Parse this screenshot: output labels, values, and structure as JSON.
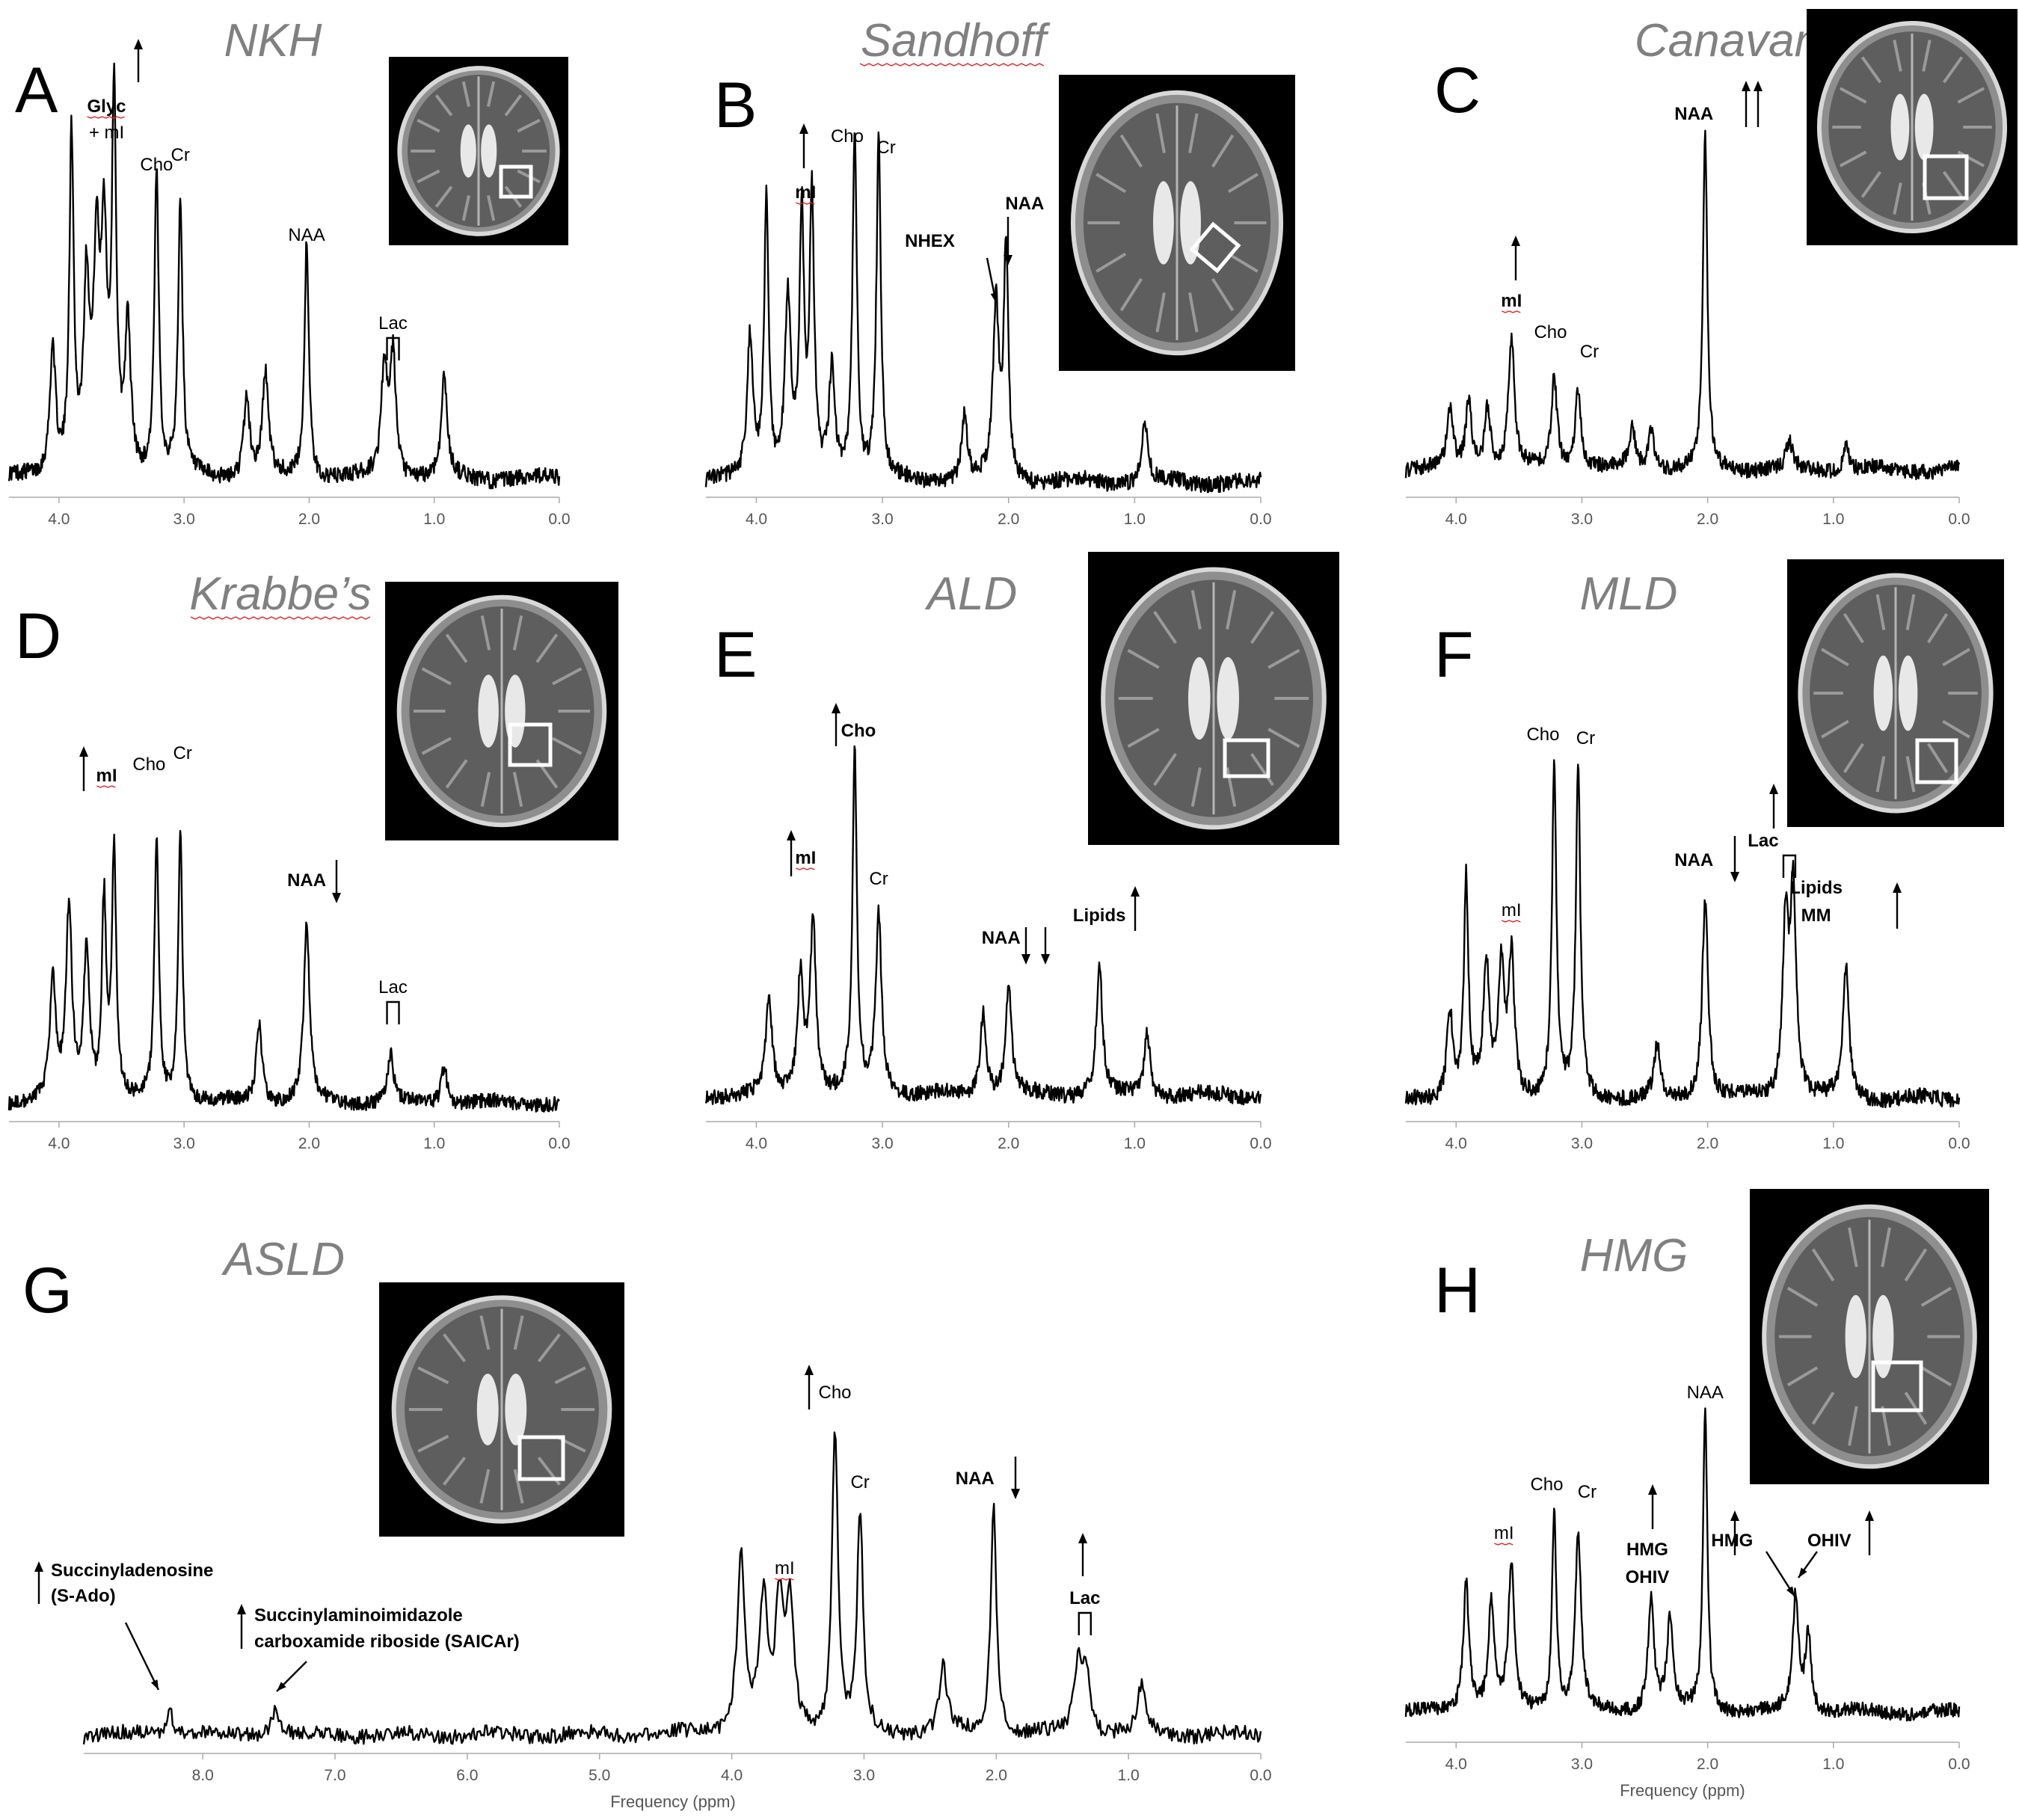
{
  "axis": {
    "xlabel": "Frequency (ppm)"
  },
  "colors": {
    "trace": "#000000",
    "title": "#808080",
    "axis": "#aaaaaa",
    "mri_roi": "#ffffff"
  },
  "chart_data": [
    {
      "type": "line",
      "letter": "A",
      "disease": "NKH",
      "xlim": [
        4.4,
        0.0
      ],
      "ticks": [
        "4.0",
        "3.0",
        "2.0",
        "1.0",
        "0.0"
      ],
      "peaks": [
        [
          4.05,
          0.35
        ],
        [
          3.9,
          0.92
        ],
        [
          3.78,
          0.5
        ],
        [
          3.7,
          0.55
        ],
        [
          3.64,
          0.6
        ],
        [
          3.56,
          1.0
        ],
        [
          3.45,
          0.4
        ],
        [
          3.22,
          0.82
        ],
        [
          3.03,
          0.75
        ],
        [
          2.5,
          0.22
        ],
        [
          2.35,
          0.28
        ],
        [
          2.02,
          0.65
        ],
        [
          1.4,
          0.3
        ],
        [
          1.33,
          0.33
        ],
        [
          0.92,
          0.27
        ]
      ],
      "labels": [
        {
          "id": "glyc",
          "text": "Glyc",
          "ppm": 3.56,
          "bold": true
        },
        {
          "id": "glyc_mi",
          "text": "+ mI",
          "ppm": 3.56,
          "bold": false
        },
        {
          "id": "cho",
          "text": "Cho",
          "ppm": 3.22,
          "bold": false
        },
        {
          "id": "cr",
          "text": "Cr",
          "ppm": 3.03,
          "bold": false
        },
        {
          "id": "naa",
          "text": "NAA",
          "ppm": 2.02,
          "bold": false
        },
        {
          "id": "lac",
          "text": "Lac",
          "ppm": 1.33,
          "bold": false
        }
      ]
    },
    {
      "type": "line",
      "letter": "B",
      "disease": "Sandhoff",
      "xlim": [
        4.4,
        0.0
      ],
      "ticks": [
        "4.0",
        "3.0",
        "2.0",
        "1.0",
        "0.0"
      ],
      "peaks": [
        [
          4.05,
          0.4
        ],
        [
          3.92,
          0.78
        ],
        [
          3.75,
          0.5
        ],
        [
          3.64,
          0.72
        ],
        [
          3.56,
          0.78
        ],
        [
          3.4,
          0.3
        ],
        [
          3.22,
          0.98
        ],
        [
          3.03,
          0.95
        ],
        [
          2.35,
          0.18
        ],
        [
          2.1,
          0.48
        ],
        [
          2.02,
          0.65
        ],
        [
          0.92,
          0.17
        ]
      ],
      "labels": [
        {
          "id": "mi",
          "text": "mI",
          "ppm": 3.58,
          "bold": true
        },
        {
          "id": "cho",
          "text": "Cho",
          "ppm": 3.22,
          "bold": false
        },
        {
          "id": "cr",
          "text": "Cr",
          "ppm": 3.03,
          "bold": false
        },
        {
          "id": "nhex",
          "text": "NHEX",
          "ppm": 2.12,
          "bold": true
        },
        {
          "id": "naa",
          "text": "NAA",
          "ppm": 2.02,
          "bold": true
        }
      ]
    },
    {
      "type": "line",
      "letter": "C",
      "disease": "Canavan",
      "xlim": [
        4.4,
        0.0
      ],
      "ticks": [
        "4.0",
        "3.0",
        "2.0",
        "1.0",
        "0.0"
      ],
      "peaks": [
        [
          4.05,
          0.17
        ],
        [
          3.9,
          0.2
        ],
        [
          3.75,
          0.18
        ],
        [
          3.56,
          0.38
        ],
        [
          3.22,
          0.27
        ],
        [
          3.03,
          0.24
        ],
        [
          2.6,
          0.12
        ],
        [
          2.45,
          0.12
        ],
        [
          2.02,
          0.98
        ],
        [
          1.35,
          0.08
        ],
        [
          0.9,
          0.07
        ]
      ],
      "labels": [
        {
          "id": "naa",
          "text": "NAA",
          "ppm": 2.02,
          "bold": true
        },
        {
          "id": "mi",
          "text": "mI",
          "ppm": 3.56,
          "bold": true
        },
        {
          "id": "cho",
          "text": "Cho",
          "ppm": 3.22,
          "bold": false
        },
        {
          "id": "cr",
          "text": "Cr",
          "ppm": 3.03,
          "bold": false
        }
      ]
    },
    {
      "type": "line",
      "letter": "D",
      "disease": "Krabbe’s",
      "xlim": [
        4.4,
        0.0
      ],
      "ticks": [
        "4.0",
        "3.0",
        "2.0",
        "1.0",
        "0.0"
      ],
      "peaks": [
        [
          4.05,
          0.38
        ],
        [
          3.92,
          0.6
        ],
        [
          3.78,
          0.48
        ],
        [
          3.64,
          0.62
        ],
        [
          3.56,
          0.78
        ],
        [
          3.22,
          0.82
        ],
        [
          3.03,
          0.85
        ],
        [
          2.4,
          0.25
        ],
        [
          2.02,
          0.55
        ],
        [
          1.35,
          0.15
        ],
        [
          0.92,
          0.12
        ]
      ],
      "labels": [
        {
          "id": "mi",
          "text": "mI",
          "ppm": 3.56,
          "bold": true
        },
        {
          "id": "cho",
          "text": "Cho",
          "ppm": 3.22,
          "bold": false
        },
        {
          "id": "cr",
          "text": "Cr",
          "ppm": 3.03,
          "bold": false
        },
        {
          "id": "naa",
          "text": "NAA",
          "ppm": 2.02,
          "bold": true
        },
        {
          "id": "lac",
          "text": "Lac",
          "ppm": 1.33,
          "bold": false
        }
      ]
    },
    {
      "type": "line",
      "letter": "E",
      "disease": "ALD",
      "xlim": [
        4.4,
        0.0
      ],
      "ticks": [
        "4.0",
        "3.0",
        "2.0",
        "1.0",
        "0.0"
      ],
      "peaks": [
        [
          3.9,
          0.28
        ],
        [
          3.65,
          0.35
        ],
        [
          3.55,
          0.5
        ],
        [
          3.22,
          0.98
        ],
        [
          3.03,
          0.52
        ],
        [
          2.2,
          0.25
        ],
        [
          2.0,
          0.32
        ],
        [
          1.28,
          0.38
        ],
        [
          0.9,
          0.18
        ]
      ],
      "labels": [
        {
          "id": "cho",
          "text": "Cho",
          "ppm": 3.22,
          "bold": true
        },
        {
          "id": "mi",
          "text": "mI",
          "ppm": 3.55,
          "bold": true
        },
        {
          "id": "cr",
          "text": "Cr",
          "ppm": 3.03,
          "bold": false
        },
        {
          "id": "naa",
          "text": "NAA",
          "ppm": 2.0,
          "bold": true
        },
        {
          "id": "lipids",
          "text": "Lipids",
          "ppm": 1.28,
          "bold": true
        }
      ]
    },
    {
      "type": "line",
      "letter": "F",
      "disease": "MLD",
      "xlim": [
        4.4,
        0.0
      ],
      "ticks": [
        "4.0",
        "3.0",
        "2.0",
        "1.0",
        "0.0"
      ],
      "peaks": [
        [
          4.05,
          0.25
        ],
        [
          3.92,
          0.62
        ],
        [
          3.76,
          0.38
        ],
        [
          3.64,
          0.36
        ],
        [
          3.56,
          0.4
        ],
        [
          3.22,
          0.96
        ],
        [
          3.03,
          0.95
        ],
        [
          2.4,
          0.15
        ],
        [
          2.02,
          0.58
        ],
        [
          1.38,
          0.5
        ],
        [
          1.32,
          0.58
        ],
        [
          0.9,
          0.38
        ]
      ],
      "labels": [
        {
          "id": "cho",
          "text": "Cho",
          "ppm": 3.22,
          "bold": false
        },
        {
          "id": "cr",
          "text": "Cr",
          "ppm": 3.03,
          "bold": false
        },
        {
          "id": "mi",
          "text": "mI",
          "ppm": 3.56,
          "bold": false
        },
        {
          "id": "naa",
          "text": "NAA",
          "ppm": 2.02,
          "bold": true
        },
        {
          "id": "lac",
          "text": "Lac",
          "ppm": 1.35,
          "bold": true
        },
        {
          "id": "lipids",
          "text": "Lipids",
          "ppm": 0.9,
          "bold": true
        },
        {
          "id": "mm",
          "text": "MM",
          "ppm": 0.9,
          "bold": true
        }
      ]
    },
    {
      "type": "line",
      "letter": "G",
      "disease": "ASLD",
      "xlim": [
        8.9,
        0.0
      ],
      "ticks": [
        "8.0",
        "7.0",
        "6.0",
        "5.0",
        "4.0",
        "3.0",
        "2.0",
        "1.0",
        "0.0"
      ],
      "peaks": [
        [
          8.25,
          0.08
        ],
        [
          7.45,
          0.08
        ],
        [
          3.93,
          0.55
        ],
        [
          3.76,
          0.4
        ],
        [
          3.64,
          0.38
        ],
        [
          3.56,
          0.38
        ],
        [
          3.22,
          0.95
        ],
        [
          3.03,
          0.68
        ],
        [
          2.4,
          0.2
        ],
        [
          2.02,
          0.7
        ],
        [
          1.38,
          0.22
        ],
        [
          1.32,
          0.18
        ],
        [
          0.9,
          0.15
        ]
      ],
      "labels": [
        {
          "id": "cho",
          "text": "Cho",
          "ppm": 3.22,
          "bold": false
        },
        {
          "id": "cr",
          "text": "Cr",
          "ppm": 3.03,
          "bold": false
        },
        {
          "id": "mi",
          "text": "mI",
          "ppm": 3.6,
          "bold": false
        },
        {
          "id": "naa",
          "text": "NAA",
          "ppm": 2.02,
          "bold": true
        },
        {
          "id": "lac",
          "text": "Lac",
          "ppm": 1.33,
          "bold": true
        },
        {
          "id": "sado",
          "text": "Succinyladenosine",
          "ppm": 8.25,
          "bold": true
        },
        {
          "id": "sado2",
          "text": "(S-Ado)",
          "ppm": 8.25,
          "bold": true
        },
        {
          "id": "saicar",
          "text": "Succinylaminoimidazole",
          "ppm": 7.45,
          "bold": true
        },
        {
          "id": "saicar2",
          "text": "carboxamide riboside (SAICAr)",
          "ppm": 7.45,
          "bold": true
        }
      ]
    },
    {
      "type": "line",
      "letter": "H",
      "disease": "HMG",
      "xlim": [
        4.4,
        0.0
      ],
      "ticks": [
        "4.0",
        "3.0",
        "2.0",
        "1.0",
        "0.0"
      ],
      "peaks": [
        [
          3.92,
          0.42
        ],
        [
          3.72,
          0.35
        ],
        [
          3.56,
          0.48
        ],
        [
          3.22,
          0.65
        ],
        [
          3.03,
          0.58
        ],
        [
          2.45,
          0.38
        ],
        [
          2.3,
          0.3
        ],
        [
          2.02,
          0.98
        ],
        [
          1.3,
          0.38
        ],
        [
          1.2,
          0.25
        ]
      ],
      "labels": [
        {
          "id": "naa",
          "text": "NAA",
          "ppm": 2.02,
          "bold": false
        },
        {
          "id": "cho",
          "text": "Cho",
          "ppm": 3.22,
          "bold": false
        },
        {
          "id": "cr",
          "text": "Cr",
          "ppm": 3.03,
          "bold": false
        },
        {
          "id": "mi",
          "text": "mI",
          "ppm": 3.56,
          "bold": false
        },
        {
          "id": "hmg1",
          "text": "HMG",
          "ppm": 2.45,
          "bold": true
        },
        {
          "id": "ohiv1",
          "text": "OHIV",
          "ppm": 2.45,
          "bold": true
        },
        {
          "id": "hmg2",
          "text": "HMG",
          "ppm": 1.3,
          "bold": true
        },
        {
          "id": "ohiv2",
          "text": "OHIV",
          "ppm": 1.3,
          "bold": true
        }
      ]
    }
  ]
}
